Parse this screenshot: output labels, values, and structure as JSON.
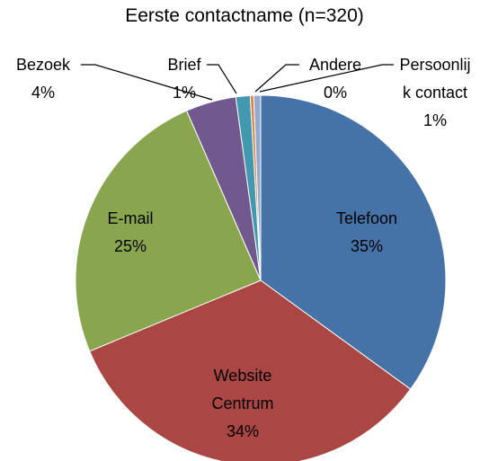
{
  "chart_data": {
    "type": "pie",
    "title": "Eerste contactname (n=320)",
    "categories": [
      "Telefoon",
      "Website Centrum",
      "E-mail",
      "Bezoek",
      "Brief",
      "Andere",
      "Persoonlijk contact"
    ],
    "values": [
      35,
      33.75,
      24.7,
      4.4,
      1.25,
      0.3,
      0.6
    ],
    "value_labels": [
      "35%",
      "34%",
      "25%",
      "4%",
      "1%",
      "0%",
      "1%"
    ],
    "colors": [
      "#4572a7",
      "#aa4643",
      "#89a54e",
      "#71588f",
      "#4198af",
      "#db843d",
      "#93a9cf"
    ]
  }
}
